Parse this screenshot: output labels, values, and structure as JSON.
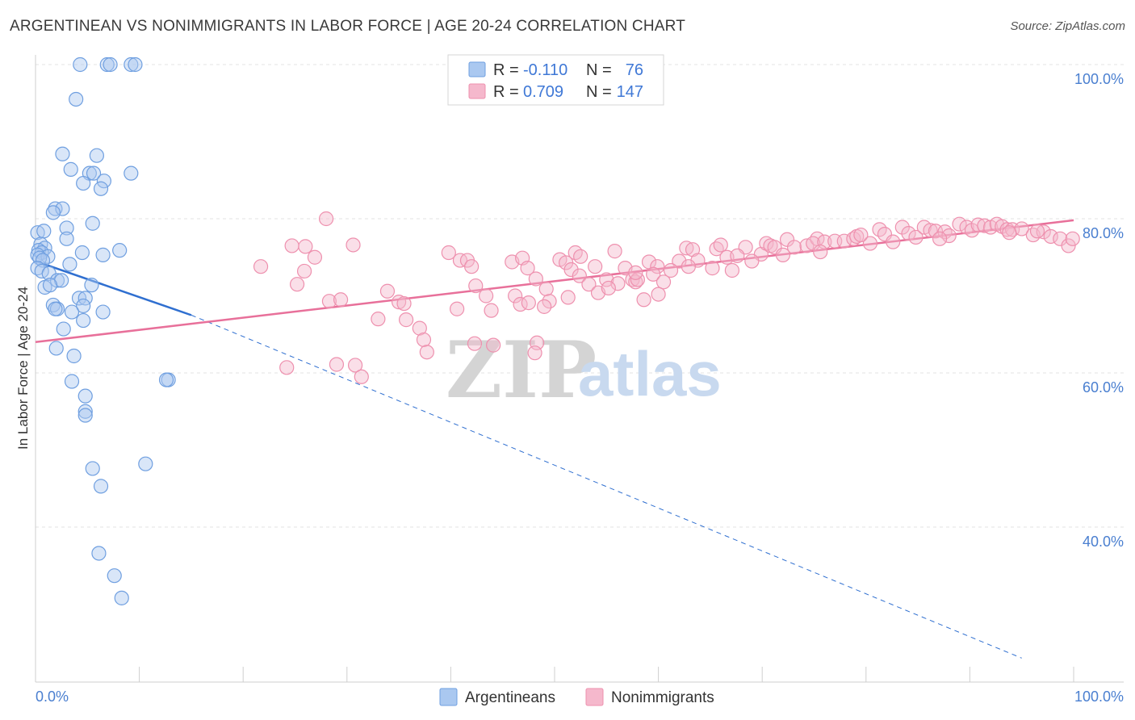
{
  "header": {
    "title": "ARGENTINEAN VS NONIMMIGRANTS IN LABOR FORCE | AGE 20-24 CORRELATION CHART",
    "source": "Source: ZipAtlas.com"
  },
  "legend_box": {
    "rows": [
      {
        "r_label": "R = ",
        "r_value": "-0.110",
        "n_label": "N = ",
        "n_value": "76"
      },
      {
        "r_label": "R = ",
        "r_value": "0.709",
        "n_label": "N = ",
        "n_value": "147"
      }
    ]
  },
  "watermark": {
    "part1": "ZIP",
    "part2": "atlas"
  },
  "chart_data": {
    "type": "scatter",
    "title": "ARGENTINEAN VS NONIMMIGRANTS IN LABOR FORCE | AGE 20-24 CORRELATION CHART",
    "xlabel": "",
    "ylabel": "In Labor Force | Age 20-24",
    "xlim": [
      0,
      100
    ],
    "ylim": [
      22,
      102
    ],
    "x_tick_labels": [
      "0.0%",
      "100.0%"
    ],
    "y_ticks": [
      40,
      60,
      80,
      100
    ],
    "y_tick_labels": [
      "40.0%",
      "60.0%",
      "80.0%",
      "100.0%"
    ],
    "grid": true,
    "colors": {
      "argentineans_fill": "#aac8f0",
      "argentineans_stroke": "#6f9fe0",
      "argentineans_line": "#2f6fd0",
      "nonimmigrants_fill": "#f5b8cc",
      "nonimmigrants_stroke": "#ee90ae",
      "nonimmigrants_line": "#e8709a"
    },
    "series": [
      {
        "name": "Argentineans",
        "r": -0.11,
        "n": 76,
        "trend": {
          "x0": 0,
          "y0": 74.5,
          "x1": 15,
          "y1": 67.5,
          "dash_to_x": 95,
          "dash_to_y": 23.0
        },
        "points": [
          [
            4.3,
            100
          ],
          [
            6.9,
            100
          ],
          [
            7.2,
            100
          ],
          [
            9.2,
            100
          ],
          [
            9.6,
            100
          ],
          [
            3.9,
            95.5
          ],
          [
            2.6,
            88.4
          ],
          [
            5.9,
            88.2
          ],
          [
            3.4,
            86.4
          ],
          [
            5.2,
            85.9
          ],
          [
            5.6,
            85.9
          ],
          [
            9.2,
            85.9
          ],
          [
            4.6,
            84.6
          ],
          [
            6.6,
            84.9
          ],
          [
            6.3,
            83.9
          ],
          [
            1.9,
            81.3
          ],
          [
            2.6,
            81.3
          ],
          [
            1.7,
            80.8
          ],
          [
            5.5,
            79.4
          ],
          [
            3.0,
            78.8
          ],
          [
            0.2,
            78.2
          ],
          [
            0.8,
            78.4
          ],
          [
            3.0,
            77.4
          ],
          [
            0.5,
            76.7
          ],
          [
            0.9,
            76.2
          ],
          [
            0.3,
            75.9
          ],
          [
            0.6,
            75.6
          ],
          [
            0.2,
            75.3
          ],
          [
            1.2,
            75.1
          ],
          [
            0.4,
            74.9
          ],
          [
            0.7,
            74.6
          ],
          [
            4.5,
            75.6
          ],
          [
            6.5,
            75.3
          ],
          [
            8.1,
            75.9
          ],
          [
            3.3,
            74.1
          ],
          [
            0.2,
            73.6
          ],
          [
            0.6,
            73.2
          ],
          [
            1.3,
            72.9
          ],
          [
            2.1,
            72.0
          ],
          [
            2.5,
            72.0
          ],
          [
            0.9,
            71.1
          ],
          [
            1.4,
            71.4
          ],
          [
            5.4,
            71.4
          ],
          [
            4.2,
            69.7
          ],
          [
            4.8,
            69.7
          ],
          [
            1.7,
            68.8
          ],
          [
            4.6,
            68.7
          ],
          [
            2.1,
            68.3
          ],
          [
            1.9,
            68.3
          ],
          [
            3.5,
            67.9
          ],
          [
            6.5,
            67.9
          ],
          [
            4.6,
            66.8
          ],
          [
            2.7,
            65.7
          ],
          [
            2.0,
            63.2
          ],
          [
            3.7,
            62.2
          ],
          [
            12.8,
            59.1
          ],
          [
            12.6,
            59.1
          ],
          [
            3.5,
            58.9
          ],
          [
            4.8,
            57.0
          ],
          [
            4.8,
            55.0
          ],
          [
            4.8,
            54.5
          ],
          [
            5.5,
            47.6
          ],
          [
            10.6,
            48.2
          ],
          [
            6.3,
            45.3
          ],
          [
            6.1,
            36.6
          ],
          [
            7.6,
            33.7
          ],
          [
            8.3,
            30.8
          ]
        ]
      },
      {
        "name": "Nonimmigrants",
        "r": 0.709,
        "n": 147,
        "trend": {
          "x0": 0,
          "y0": 64.0,
          "x1": 100,
          "y1": 79.8
        },
        "points": [
          [
            21.7,
            73.8
          ],
          [
            24.7,
            76.5
          ],
          [
            26.0,
            76.4
          ],
          [
            26.9,
            75.0
          ],
          [
            25.9,
            73.2
          ],
          [
            25.2,
            71.5
          ],
          [
            28.3,
            69.3
          ],
          [
            28.0,
            80.0
          ],
          [
            30.6,
            76.6
          ],
          [
            29.4,
            69.5
          ],
          [
            24.2,
            60.7
          ],
          [
            29.0,
            61.1
          ],
          [
            30.8,
            61.0
          ],
          [
            31.4,
            59.5
          ],
          [
            33.0,
            67.0
          ],
          [
            33.9,
            70.6
          ],
          [
            35.0,
            69.2
          ],
          [
            35.5,
            69.0
          ],
          [
            35.7,
            66.9
          ],
          [
            37.0,
            65.8
          ],
          [
            37.4,
            64.3
          ],
          [
            37.7,
            62.7
          ],
          [
            39.8,
            75.6
          ],
          [
            40.9,
            74.6
          ],
          [
            41.6,
            74.6
          ],
          [
            42.0,
            73.8
          ],
          [
            40.6,
            68.3
          ],
          [
            42.4,
            71.3
          ],
          [
            43.4,
            70.0
          ],
          [
            43.9,
            68.1
          ],
          [
            42.3,
            63.8
          ],
          [
            44.1,
            63.6
          ],
          [
            45.9,
            74.4
          ],
          [
            46.9,
            74.9
          ],
          [
            47.4,
            73.6
          ],
          [
            48.2,
            72.2
          ],
          [
            46.2,
            70.0
          ],
          [
            46.7,
            68.9
          ],
          [
            47.5,
            69.1
          ],
          [
            49.2,
            70.9
          ],
          [
            48.3,
            63.9
          ],
          [
            48.1,
            62.6
          ],
          [
            49.5,
            69.3
          ],
          [
            52.0,
            75.6
          ],
          [
            50.5,
            74.7
          ],
          [
            51.1,
            74.3
          ],
          [
            52.5,
            75.1
          ],
          [
            51.6,
            73.4
          ],
          [
            52.4,
            72.6
          ],
          [
            53.9,
            73.8
          ],
          [
            53.3,
            71.5
          ],
          [
            55.0,
            72.1
          ],
          [
            54.2,
            70.4
          ],
          [
            55.8,
            75.8
          ],
          [
            56.8,
            73.6
          ],
          [
            57.5,
            72.1
          ],
          [
            56.1,
            71.6
          ],
          [
            57.8,
            71.8
          ],
          [
            58.0,
            72.1
          ],
          [
            59.1,
            74.4
          ],
          [
            59.9,
            73.8
          ],
          [
            59.5,
            72.8
          ],
          [
            60.5,
            71.8
          ],
          [
            62.0,
            74.5
          ],
          [
            62.7,
            76.2
          ],
          [
            63.3,
            76.0
          ],
          [
            63.8,
            74.6
          ],
          [
            65.6,
            76.1
          ],
          [
            66.0,
            76.6
          ],
          [
            65.2,
            73.6
          ],
          [
            66.6,
            75.0
          ],
          [
            67.1,
            73.3
          ],
          [
            68.4,
            76.3
          ],
          [
            69.9,
            75.4
          ],
          [
            70.4,
            76.8
          ],
          [
            70.8,
            76.5
          ],
          [
            71.2,
            76.3
          ],
          [
            72.4,
            77.3
          ],
          [
            73.1,
            76.3
          ],
          [
            74.3,
            76.5
          ],
          [
            75.3,
            77.4
          ],
          [
            74.9,
            76.8
          ],
          [
            76.0,
            77.0
          ],
          [
            77.0,
            77.1
          ],
          [
            77.9,
            77.1
          ],
          [
            78.8,
            77.4
          ],
          [
            79.1,
            77.7
          ],
          [
            80.4,
            76.8
          ],
          [
            81.3,
            78.6
          ],
          [
            81.8,
            78.0
          ],
          [
            82.6,
            77.0
          ],
          [
            83.5,
            78.9
          ],
          [
            84.1,
            78.1
          ],
          [
            84.8,
            77.6
          ],
          [
            85.6,
            78.9
          ],
          [
            86.2,
            78.5
          ],
          [
            86.7,
            78.4
          ],
          [
            87.6,
            78.3
          ],
          [
            88.0,
            77.8
          ],
          [
            89.0,
            79.3
          ],
          [
            89.7,
            78.9
          ],
          [
            90.2,
            78.5
          ],
          [
            90.8,
            79.2
          ],
          [
            91.4,
            79.1
          ],
          [
            92.0,
            78.9
          ],
          [
            92.6,
            79.3
          ],
          [
            93.1,
            79.0
          ],
          [
            93.6,
            78.6
          ],
          [
            94.1,
            78.6
          ],
          [
            95.0,
            78.7
          ],
          [
            96.1,
            77.9
          ],
          [
            97.1,
            78.3
          ],
          [
            97.8,
            77.7
          ],
          [
            98.7,
            77.4
          ],
          [
            99.5,
            76.5
          ],
          [
            99.9,
            77.4
          ],
          [
            57.8,
            73.0
          ],
          [
            55.2,
            71.0
          ],
          [
            60.0,
            70.2
          ],
          [
            58.6,
            69.5
          ],
          [
            51.3,
            69.8
          ],
          [
            49.0,
            68.6
          ],
          [
            61.2,
            73.3
          ],
          [
            62.9,
            73.8
          ],
          [
            67.6,
            75.2
          ],
          [
            69.0,
            74.5
          ],
          [
            72.0,
            75.3
          ],
          [
            79.5,
            77.9
          ],
          [
            87.1,
            77.4
          ],
          [
            93.8,
            78.2
          ],
          [
            96.5,
            78.4
          ],
          [
            75.6,
            75.7
          ]
        ]
      }
    ]
  },
  "bottom_legend": {
    "items": [
      {
        "label": "Argentineans"
      },
      {
        "label": "Nonimmigrants"
      }
    ]
  }
}
